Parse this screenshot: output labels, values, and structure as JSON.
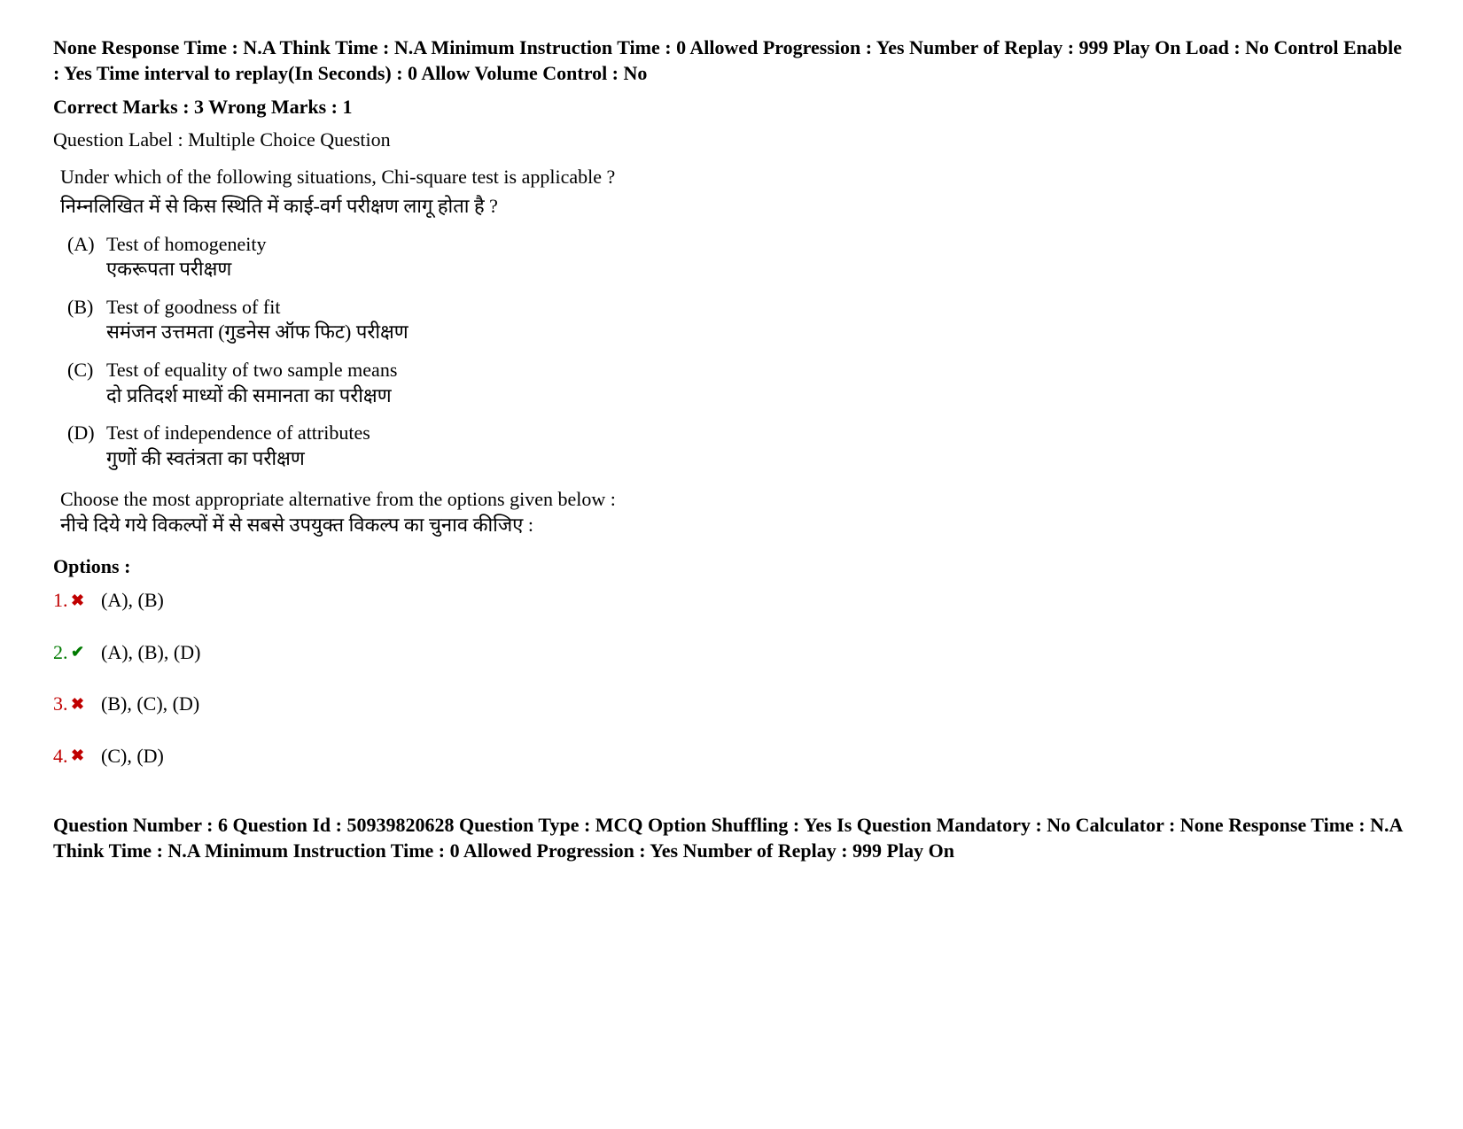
{
  "meta_top": "None Response Time : N.A Think Time : N.A Minimum Instruction Time : 0 Allowed Progression : Yes Number of Replay : 999 Play On Load : No Control Enable : Yes Time interval to replay(In Seconds) : 0 Allow Volume Control : No",
  "marks_line": "Correct Marks : 3 Wrong Marks : 1",
  "label_line": "Question Label : Multiple Choice Question",
  "question": {
    "en": "Under which of the following situations, Chi-square test is applicable ?",
    "hi": "निम्नलिखित में से किस स्थिति में काई-वर्ग परीक्षण लागू होता है ?"
  },
  "subitems": [
    {
      "letter": "(A)",
      "en": "Test of homogeneity",
      "hi": "एकरूपता परीक्षण"
    },
    {
      "letter": "(B)",
      "en": "Test of goodness of fit",
      "hi": "समंजन उत्तमता (गुडनेस ऑफ फिट) परीक्षण"
    },
    {
      "letter": "(C)",
      "en": "Test of  equality of two sample means",
      "hi": "दो प्रतिदर्श माध्यों की समानता का परीक्षण"
    },
    {
      "letter": "(D)",
      "en": "Test of independence of attributes",
      "hi": "गुणों की स्वतंत्रता का परीक्षण"
    }
  ],
  "choose": {
    "en": "Choose the most appropriate alternative from the options given below :",
    "hi": "नीचे दिये गये विकल्पों में से सबसे उपयुक्त विकल्प का चुनाव कीजिए :"
  },
  "options_heading": "Options :",
  "options": [
    {
      "num": "1.",
      "status": "wrong",
      "text": "(A), (B)"
    },
    {
      "num": "2.",
      "status": "correct",
      "text": "(A), (B), (D)"
    },
    {
      "num": "3.",
      "status": "wrong",
      "text": "(B), (C), (D)"
    },
    {
      "num": "4.",
      "status": "wrong",
      "text": "(C), (D)"
    }
  ],
  "icons": {
    "wrong": "✖",
    "correct": "✔"
  },
  "colors": {
    "wrong": "#c00000",
    "correct": "#007a00",
    "text": "#000000",
    "bg": "#ffffff"
  },
  "footer_meta": "Question Number : 6 Question Id : 50939820628 Question Type : MCQ Option Shuffling : Yes Is Question Mandatory : No Calculator : None Response Time : N.A Think Time : N.A Minimum Instruction Time : 0 Allowed Progression : Yes Number of Replay : 999 Play On"
}
